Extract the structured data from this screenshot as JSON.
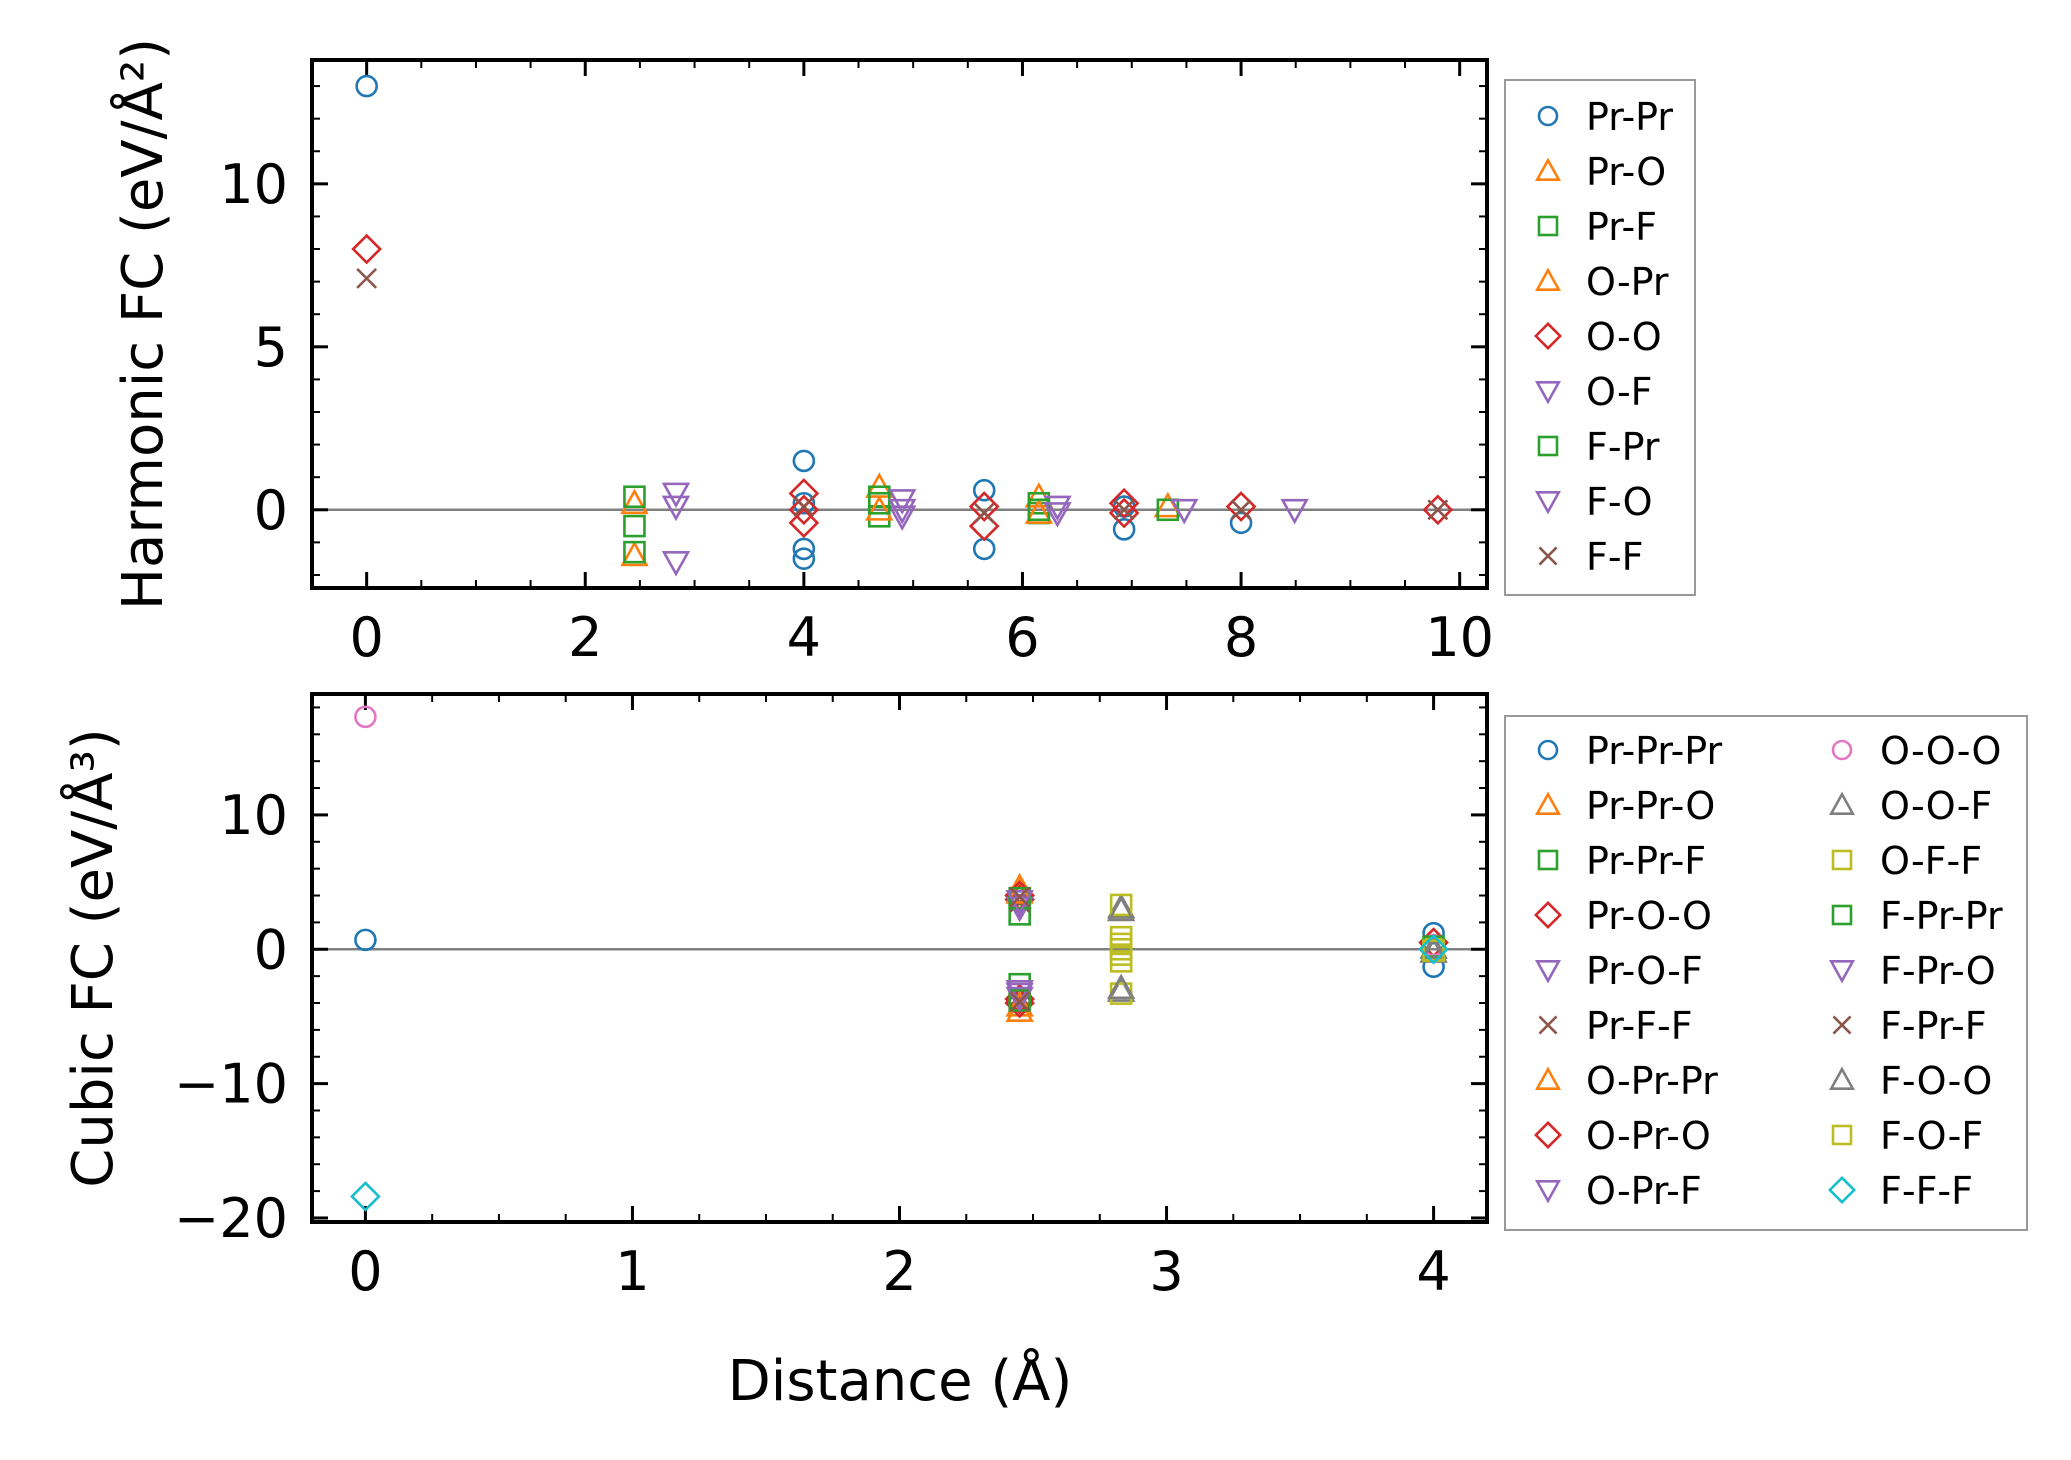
{
  "xlabel": "Distance (Å)",
  "colors": {
    "blue": "#1f77b4",
    "orange": "#ff7f0e",
    "green": "#2ca02c",
    "red": "#d62728",
    "purple": "#9467bd",
    "brown": "#8c564b",
    "pink": "#e377c2",
    "gray": "#7f7f7f",
    "olive": "#bcbd22",
    "cyan": "#17becf"
  },
  "chart_data": [
    {
      "type": "scatter",
      "panel": "top",
      "ylabel": "Harmonic FC (eV/Å²)",
      "xlim": [
        -0.5,
        10.25
      ],
      "ylim": [
        -2.4,
        13.8
      ],
      "xticks": [
        "0",
        "2",
        "4",
        "6",
        "8",
        "10"
      ],
      "yticks": [
        "0",
        "5",
        "10"
      ],
      "xtick_values": [
        0,
        2,
        4,
        6,
        8,
        10
      ],
      "ytick_values": [
        0,
        5,
        10
      ],
      "legend_position": "outside-right",
      "series": [
        {
          "name": "Pr-Pr",
          "marker": "circle",
          "color": "#1f77b4",
          "points": [
            [
              0,
              13.0
            ],
            [
              4.0,
              1.5
            ],
            [
              4.0,
              -1.2
            ],
            [
              4.0,
              -1.5
            ],
            [
              4.0,
              0.2
            ],
            [
              5.65,
              0.6
            ],
            [
              5.65,
              -1.2
            ],
            [
              6.93,
              -0.6
            ],
            [
              6.93,
              0.1
            ],
            [
              8.0,
              -0.4
            ]
          ]
        },
        {
          "name": "Pr-O",
          "marker": "triangle-up",
          "color": "#ff7f0e",
          "points": [
            [
              2.45,
              -1.4
            ],
            [
              2.45,
              0.2
            ],
            [
              4.69,
              0.7
            ],
            [
              6.15,
              0.4
            ],
            [
              7.33,
              0.1
            ]
          ]
        },
        {
          "name": "Pr-F",
          "marker": "square",
          "color": "#2ca02c",
          "points": [
            [
              2.45,
              0.4
            ],
            [
              2.45,
              -0.5
            ],
            [
              2.45,
              -1.3
            ],
            [
              4.69,
              0.4
            ],
            [
              4.69,
              -0.2
            ],
            [
              6.15,
              0.2
            ],
            [
              6.15,
              -0.1
            ],
            [
              7.33,
              0.0
            ]
          ]
        },
        {
          "name": "O-Pr",
          "marker": "triangle-up",
          "color": "#ff7f0e",
          "points": [
            [
              4.69,
              0.0
            ],
            [
              6.15,
              -0.1
            ]
          ]
        },
        {
          "name": "O-O",
          "marker": "diamond",
          "color": "#d62728",
          "points": [
            [
              0,
              8.0
            ],
            [
              4.0,
              0.5
            ],
            [
              4.0,
              -0.4
            ],
            [
              4.0,
              0.0
            ],
            [
              5.65,
              -0.5
            ],
            [
              5.65,
              0.1
            ],
            [
              6.93,
              0.2
            ],
            [
              6.93,
              -0.1
            ],
            [
              8.0,
              0.1
            ],
            [
              9.8,
              0.0
            ]
          ]
        },
        {
          "name": "O-F",
          "marker": "triangle-down",
          "color": "#9467bd",
          "points": [
            [
              2.83,
              0.5
            ],
            [
              2.83,
              0.1
            ],
            [
              2.83,
              -1.6
            ],
            [
              4.9,
              0.3
            ],
            [
              4.9,
              -0.2
            ],
            [
              6.32,
              0.1
            ],
            [
              7.48,
              0.0
            ],
            [
              8.49,
              0.0
            ]
          ]
        },
        {
          "name": "F-Pr",
          "marker": "square",
          "color": "#2ca02c",
          "points": [
            [
              4.69,
              0.2
            ],
            [
              6.15,
              0.0
            ]
          ]
        },
        {
          "name": "F-O",
          "marker": "triangle-down",
          "color": "#9467bd",
          "points": [
            [
              4.9,
              0.0
            ],
            [
              6.32,
              -0.1
            ]
          ]
        },
        {
          "name": "F-F",
          "marker": "cross",
          "color": "#8c564b",
          "points": [
            [
              0,
              7.1
            ],
            [
              4.0,
              0.1
            ],
            [
              5.65,
              -0.1
            ],
            [
              6.93,
              0.0
            ],
            [
              8.0,
              0.0
            ],
            [
              9.8,
              0.0
            ]
          ]
        }
      ]
    },
    {
      "type": "scatter",
      "panel": "bottom",
      "ylabel": "Cubic FC (eV/Å³)",
      "xlim": [
        -0.2,
        4.2
      ],
      "ylim": [
        -20.3,
        19.0
      ],
      "xticks": [
        "0",
        "1",
        "2",
        "3",
        "4"
      ],
      "yticks": [
        "−20",
        "−10",
        "0",
        "10"
      ],
      "xtick_values": [
        0,
        1,
        2,
        3,
        4
      ],
      "ytick_values": [
        -20,
        -10,
        0,
        10
      ],
      "legend_position": "outside-right",
      "series": [
        {
          "name": "Pr-Pr-Pr",
          "marker": "circle",
          "color": "#1f77b4",
          "points": [
            [
              0,
              0.7
            ],
            [
              4.0,
              1.2
            ],
            [
              4.0,
              -1.3
            ]
          ]
        },
        {
          "name": "Pr-Pr-O",
          "marker": "triangle-up",
          "color": "#ff7f0e",
          "points": [
            [
              2.45,
              4.6
            ],
            [
              2.45,
              -4.6
            ]
          ]
        },
        {
          "name": "Pr-Pr-F",
          "marker": "square",
          "color": "#2ca02c",
          "points": [
            [
              2.45,
              2.6
            ],
            [
              2.45,
              -2.6
            ]
          ]
        },
        {
          "name": "Pr-O-O",
          "marker": "diamond",
          "color": "#d62728",
          "points": [
            [
              2.45,
              3.7
            ],
            [
              2.45,
              -3.7
            ],
            [
              4.0,
              0.5
            ]
          ]
        },
        {
          "name": "Pr-O-F",
          "marker": "triangle-down",
          "color": "#9467bd",
          "points": [
            [
              2.45,
              3.3
            ],
            [
              2.45,
              -3.3
            ]
          ]
        },
        {
          "name": "Pr-F-F",
          "marker": "cross",
          "color": "#8c564b",
          "points": [
            [
              2.45,
              3.5
            ],
            [
              2.45,
              -3.5
            ]
          ]
        },
        {
          "name": "O-Pr-Pr",
          "marker": "triangle-up",
          "color": "#ff7f0e",
          "points": [
            [
              2.45,
              4.2
            ],
            [
              2.45,
              -4.2
            ]
          ]
        },
        {
          "name": "O-Pr-O",
          "marker": "diamond",
          "color": "#d62728",
          "points": [
            [
              2.45,
              4.0
            ],
            [
              2.45,
              -4.0
            ]
          ]
        },
        {
          "name": "O-Pr-F",
          "marker": "triangle-down",
          "color": "#9467bd",
          "points": [
            [
              2.45,
              3.1
            ],
            [
              2.45,
              -3.1
            ]
          ]
        },
        {
          "name": "O-O-O",
          "marker": "circle",
          "color": "#e377c2",
          "points": [
            [
              0,
              17.3
            ],
            [
              4.0,
              0.3
            ]
          ]
        },
        {
          "name": "O-O-F",
          "marker": "triangle-up",
          "color": "#7f7f7f",
          "points": [
            [
              2.83,
              3.1
            ],
            [
              2.83,
              -3.1
            ],
            [
              4.0,
              -0.2
            ]
          ]
        },
        {
          "name": "O-F-F",
          "marker": "square",
          "color": "#bcbd22",
          "points": [
            [
              2.83,
              3.3
            ],
            [
              2.83,
              -3.3
            ],
            [
              2.83,
              0.9
            ],
            [
              2.83,
              -0.9
            ],
            [
              4.0,
              0.0
            ]
          ]
        },
        {
          "name": "F-Pr-Pr",
          "marker": "square",
          "color": "#2ca02c",
          "points": [
            [
              2.45,
              3.8
            ],
            [
              2.45,
              -3.8
            ],
            [
              4.0,
              0.2
            ]
          ]
        },
        {
          "name": "F-Pr-O",
          "marker": "triangle-down",
          "color": "#9467bd",
          "points": [
            [
              2.45,
              3.6
            ],
            [
              2.45,
              -3.6
            ]
          ]
        },
        {
          "name": "F-Pr-F",
          "marker": "cross",
          "color": "#8c564b",
          "points": [
            [
              2.45,
              3.9
            ],
            [
              2.45,
              -3.9
            ]
          ]
        },
        {
          "name": "F-O-O",
          "marker": "triangle-up",
          "color": "#7f7f7f",
          "points": [
            [
              2.83,
              2.9
            ],
            [
              2.83,
              -2.9
            ],
            [
              4.0,
              0.1
            ]
          ]
        },
        {
          "name": "F-O-F",
          "marker": "square",
          "color": "#bcbd22",
          "points": [
            [
              2.83,
              0.4
            ],
            [
              2.83,
              -0.4
            ],
            [
              2.83,
              0.0
            ],
            [
              4.0,
              -0.1
            ]
          ]
        },
        {
          "name": "F-F-F",
          "marker": "diamond",
          "color": "#17becf",
          "points": [
            [
              0,
              -18.4
            ],
            [
              4.0,
              0.0
            ]
          ]
        }
      ]
    }
  ]
}
